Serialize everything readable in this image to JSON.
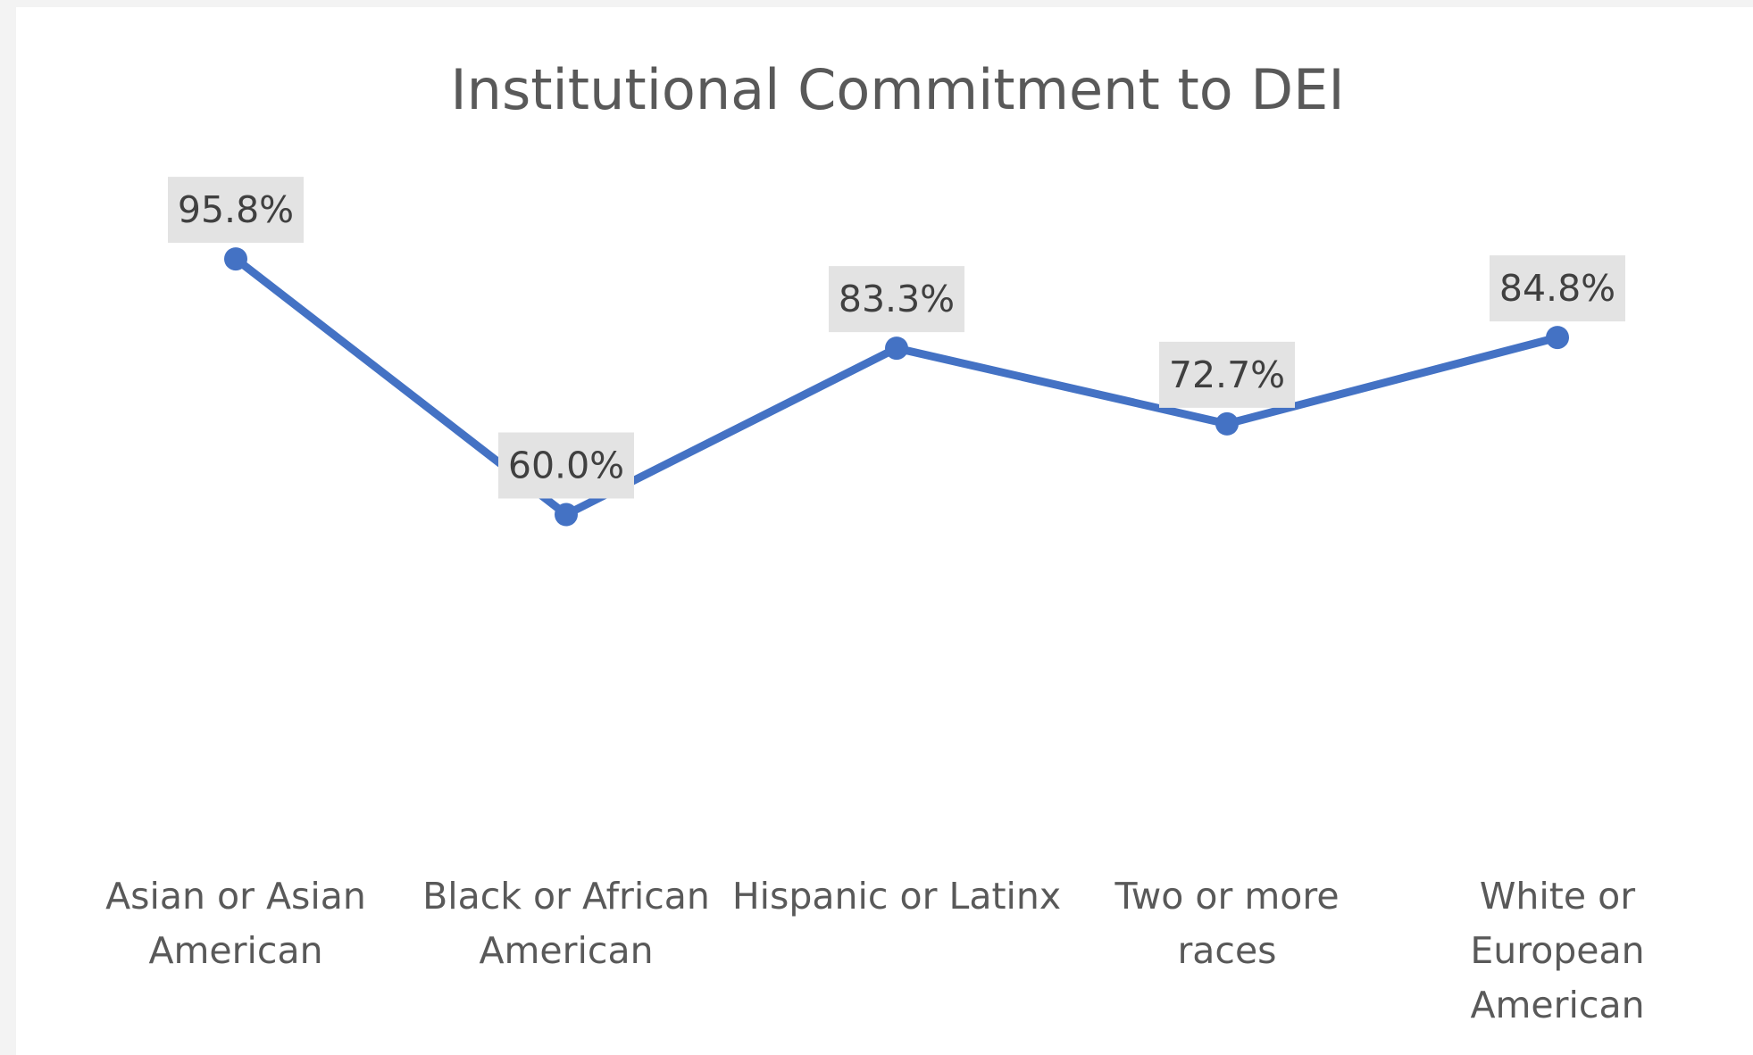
{
  "chart_data": {
    "type": "line",
    "title": "Institutional Commitment to DEI",
    "categories": [
      [
        "Asian or Asian",
        "American"
      ],
      [
        "Black or African",
        "American"
      ],
      [
        "Hispanic or Latinx"
      ],
      [
        "Two or more",
        "races"
      ],
      [
        "White or",
        "European",
        "American"
      ]
    ],
    "values": [
      95.8,
      60.0,
      83.3,
      72.7,
      84.8
    ],
    "data_labels": [
      "95.8%",
      "60.0%",
      "83.3%",
      "72.7%",
      "84.8%"
    ],
    "value_unit": "%",
    "series_color": "#4472c4",
    "grid": false,
    "legend": "none"
  }
}
